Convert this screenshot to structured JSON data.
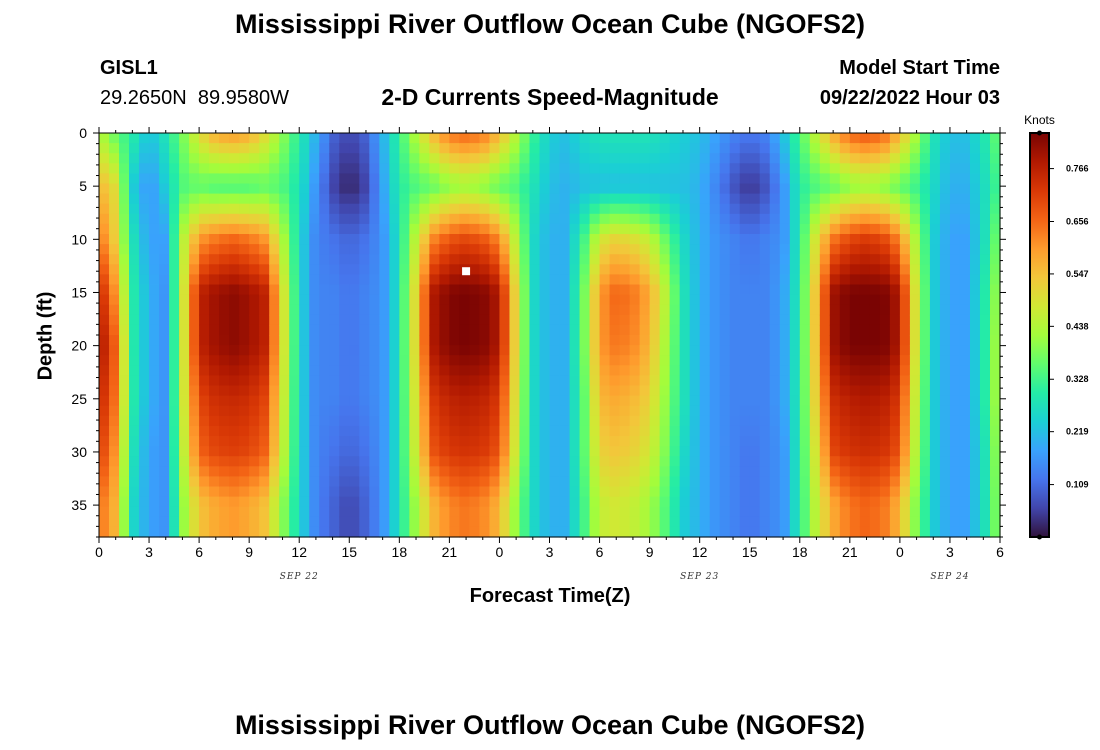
{
  "page": {
    "title": "Mississippi River Outflow Ocean Cube (NGOFS2)",
    "station_id": "GISL1",
    "station_coords": "29.2650N  89.9580W",
    "model_start_label": "Model Start Time",
    "model_start_value": "09/22/2022 Hour 03",
    "footer_title": "Mississippi River Outflow Ocean Cube (NGOFS2)"
  },
  "chart_data": {
    "type": "heatmap",
    "title": "2-D Currents Speed-Magnitude",
    "xlabel": "Forecast Time(Z)",
    "ylabel": "Depth (ft)",
    "colorbar_label": "Knots",
    "x_hours_range": [
      0,
      54
    ],
    "y_depth_range": [
      0,
      38
    ],
    "y_inverted": true,
    "x_tick_labels": [
      "0",
      "3",
      "6",
      "9",
      "12",
      "15",
      "18",
      "21",
      "0",
      "3",
      "6",
      "9",
      "12",
      "15",
      "18",
      "21",
      "0",
      "3",
      "6"
    ],
    "y_tick_labels": [
      "0",
      "5",
      "10",
      "15",
      "20",
      "25",
      "30",
      "35"
    ],
    "y_tick_values": [
      0,
      5,
      10,
      15,
      20,
      25,
      30,
      35
    ],
    "date_labels": [
      {
        "text": "SEP 22",
        "hour": 12
      },
      {
        "text": "SEP 23",
        "hour": 36
      },
      {
        "text": "SEP 24",
        "hour": 51
      }
    ],
    "colorbar_ticks": [
      "0.109",
      "0.219",
      "0.328",
      "0.438",
      "0.547",
      "0.656",
      "0.766"
    ],
    "colorbar_range": [
      0.0,
      0.84
    ],
    "colormap": [
      "#30123b",
      "#4145ab",
      "#4675ed",
      "#39a2fc",
      "#1bcfd4",
      "#24eca6",
      "#61fc6c",
      "#a4fc3b",
      "#d1e834",
      "#f3c63a",
      "#fe9b2d",
      "#f36315",
      "#d93806",
      "#b11901",
      "#7a0403"
    ],
    "sample_hours": [
      0,
      1,
      2,
      3,
      4,
      5,
      6,
      7,
      8,
      9,
      10,
      11,
      12,
      13,
      14,
      15,
      16,
      17,
      18,
      19,
      20,
      21,
      22,
      23,
      24,
      25,
      26,
      27,
      28,
      29,
      30,
      31,
      32,
      33,
      34,
      35,
      36,
      37,
      38,
      39,
      40,
      41,
      42,
      43,
      44,
      45,
      46,
      47,
      48,
      49,
      50,
      51,
      52,
      53,
      54
    ],
    "sample_depths": [
      0,
      5,
      10,
      15,
      20,
      25,
      30,
      35
    ],
    "speed_knots": [
      [
        0.44,
        0.56,
        0.65,
        0.76,
        0.8,
        0.76,
        0.72,
        0.65
      ],
      [
        0.36,
        0.5,
        0.52,
        0.6,
        0.66,
        0.64,
        0.6,
        0.56
      ],
      [
        0.3,
        0.24,
        0.28,
        0.3,
        0.3,
        0.3,
        0.28,
        0.26
      ],
      [
        0.22,
        0.16,
        0.18,
        0.2,
        0.2,
        0.2,
        0.18,
        0.18
      ],
      [
        0.28,
        0.24,
        0.18,
        0.16,
        0.16,
        0.16,
        0.16,
        0.16
      ],
      [
        0.38,
        0.34,
        0.44,
        0.46,
        0.46,
        0.46,
        0.44,
        0.4
      ],
      [
        0.5,
        0.36,
        0.6,
        0.76,
        0.76,
        0.7,
        0.66,
        0.54
      ],
      [
        0.58,
        0.34,
        0.64,
        0.8,
        0.8,
        0.74,
        0.7,
        0.58
      ],
      [
        0.6,
        0.34,
        0.66,
        0.82,
        0.82,
        0.75,
        0.71,
        0.6
      ],
      [
        0.58,
        0.34,
        0.64,
        0.8,
        0.8,
        0.74,
        0.7,
        0.58
      ],
      [
        0.5,
        0.36,
        0.6,
        0.76,
        0.76,
        0.7,
        0.66,
        0.54
      ],
      [
        0.4,
        0.34,
        0.44,
        0.5,
        0.5,
        0.48,
        0.46,
        0.4
      ],
      [
        0.3,
        0.28,
        0.26,
        0.26,
        0.26,
        0.26,
        0.26,
        0.26
      ],
      [
        0.2,
        0.16,
        0.14,
        0.14,
        0.14,
        0.14,
        0.14,
        0.14
      ],
      [
        0.1,
        0.06,
        0.12,
        0.14,
        0.14,
        0.14,
        0.12,
        0.1
      ],
      [
        0.06,
        0.02,
        0.1,
        0.12,
        0.12,
        0.12,
        0.1,
        0.06
      ],
      [
        0.1,
        0.06,
        0.12,
        0.14,
        0.14,
        0.14,
        0.12,
        0.1
      ],
      [
        0.2,
        0.18,
        0.16,
        0.16,
        0.16,
        0.16,
        0.16,
        0.16
      ],
      [
        0.32,
        0.3,
        0.28,
        0.28,
        0.28,
        0.28,
        0.28,
        0.28
      ],
      [
        0.44,
        0.34,
        0.46,
        0.52,
        0.52,
        0.5,
        0.48,
        0.42
      ],
      [
        0.56,
        0.36,
        0.62,
        0.78,
        0.78,
        0.72,
        0.68,
        0.56
      ],
      [
        0.64,
        0.4,
        0.68,
        0.83,
        0.83,
        0.76,
        0.72,
        0.62
      ],
      [
        0.66,
        0.42,
        0.7,
        0.84,
        0.84,
        0.77,
        0.73,
        0.64
      ],
      [
        0.64,
        0.4,
        0.68,
        0.83,
        0.83,
        0.76,
        0.72,
        0.62
      ],
      [
        0.56,
        0.36,
        0.62,
        0.78,
        0.78,
        0.72,
        0.68,
        0.56
      ],
      [
        0.44,
        0.34,
        0.44,
        0.5,
        0.5,
        0.48,
        0.46,
        0.4
      ],
      [
        0.32,
        0.28,
        0.26,
        0.26,
        0.26,
        0.26,
        0.26,
        0.26
      ],
      [
        0.24,
        0.22,
        0.2,
        0.2,
        0.2,
        0.2,
        0.2,
        0.2
      ],
      [
        0.22,
        0.2,
        0.2,
        0.2,
        0.2,
        0.2,
        0.2,
        0.2
      ],
      [
        0.26,
        0.22,
        0.32,
        0.36,
        0.36,
        0.34,
        0.34,
        0.32
      ],
      [
        0.28,
        0.22,
        0.48,
        0.6,
        0.6,
        0.56,
        0.52,
        0.46
      ],
      [
        0.28,
        0.22,
        0.52,
        0.66,
        0.64,
        0.58,
        0.54,
        0.48
      ],
      [
        0.28,
        0.22,
        0.5,
        0.64,
        0.62,
        0.56,
        0.52,
        0.46
      ],
      [
        0.28,
        0.22,
        0.46,
        0.58,
        0.56,
        0.52,
        0.48,
        0.42
      ],
      [
        0.26,
        0.22,
        0.36,
        0.44,
        0.42,
        0.4,
        0.38,
        0.34
      ],
      [
        0.24,
        0.22,
        0.26,
        0.28,
        0.28,
        0.28,
        0.26,
        0.24
      ],
      [
        0.22,
        0.2,
        0.2,
        0.2,
        0.2,
        0.2,
        0.2,
        0.2
      ],
      [
        0.18,
        0.14,
        0.16,
        0.16,
        0.16,
        0.16,
        0.16,
        0.16
      ],
      [
        0.14,
        0.08,
        0.14,
        0.14,
        0.14,
        0.14,
        0.14,
        0.14
      ],
      [
        0.12,
        0.04,
        0.12,
        0.14,
        0.14,
        0.14,
        0.12,
        0.12
      ],
      [
        0.14,
        0.08,
        0.14,
        0.14,
        0.14,
        0.14,
        0.14,
        0.14
      ],
      [
        0.22,
        0.16,
        0.16,
        0.18,
        0.18,
        0.18,
        0.16,
        0.16
      ],
      [
        0.34,
        0.3,
        0.3,
        0.3,
        0.3,
        0.3,
        0.3,
        0.3
      ],
      [
        0.46,
        0.34,
        0.5,
        0.56,
        0.56,
        0.54,
        0.5,
        0.46
      ],
      [
        0.58,
        0.36,
        0.64,
        0.8,
        0.8,
        0.74,
        0.7,
        0.58
      ],
      [
        0.66,
        0.4,
        0.7,
        0.84,
        0.84,
        0.77,
        0.73,
        0.64
      ],
      [
        0.68,
        0.42,
        0.72,
        0.84,
        0.84,
        0.78,
        0.74,
        0.66
      ],
      [
        0.66,
        0.4,
        0.7,
        0.84,
        0.84,
        0.77,
        0.73,
        0.64
      ],
      [
        0.56,
        0.36,
        0.62,
        0.78,
        0.78,
        0.72,
        0.68,
        0.56
      ],
      [
        0.42,
        0.32,
        0.42,
        0.46,
        0.46,
        0.44,
        0.42,
        0.38
      ],
      [
        0.28,
        0.26,
        0.24,
        0.24,
        0.24,
        0.24,
        0.24,
        0.24
      ],
      [
        0.22,
        0.2,
        0.18,
        0.18,
        0.18,
        0.18,
        0.18,
        0.18
      ],
      [
        0.22,
        0.2,
        0.18,
        0.18,
        0.18,
        0.18,
        0.18,
        0.18
      ],
      [
        0.28,
        0.26,
        0.26,
        0.28,
        0.28,
        0.28,
        0.26,
        0.26
      ],
      [
        0.38,
        0.34,
        0.4,
        0.44,
        0.46,
        0.46,
        0.44,
        0.42
      ]
    ],
    "marker": {
      "hour": 22,
      "depth": 13,
      "color": "#ffffff"
    },
    "grid": false
  }
}
